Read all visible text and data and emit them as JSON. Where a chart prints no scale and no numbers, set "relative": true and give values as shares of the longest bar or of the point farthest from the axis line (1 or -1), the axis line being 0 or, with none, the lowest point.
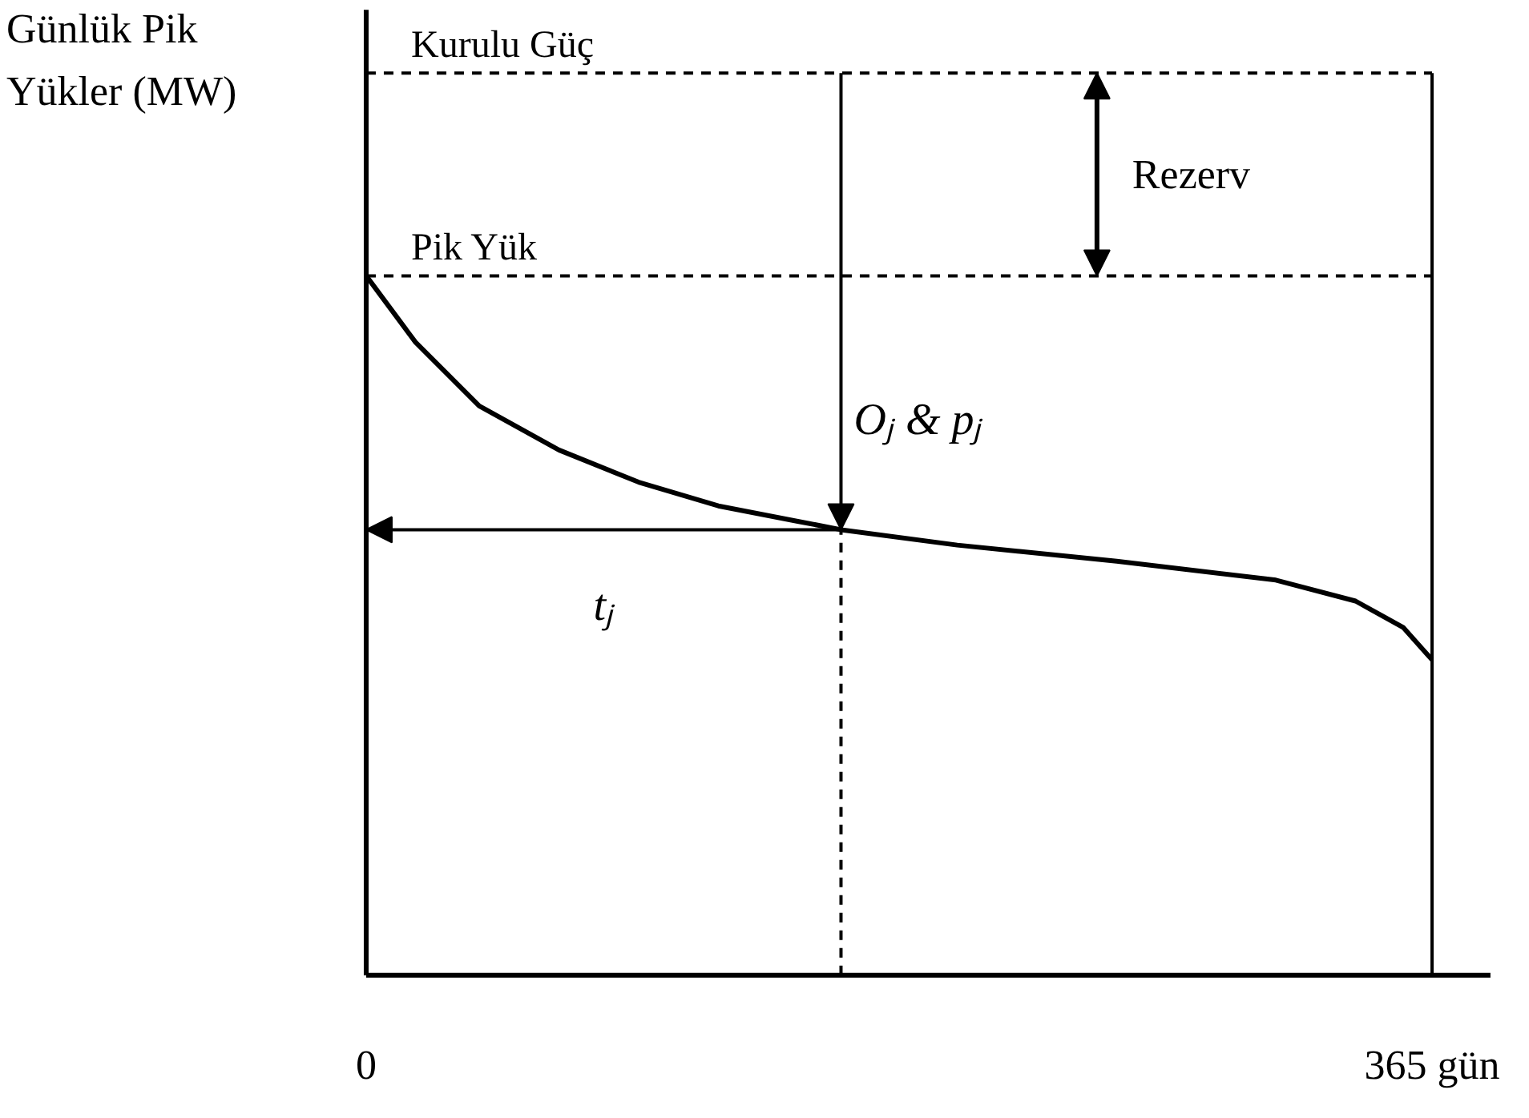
{
  "chart_data": {
    "type": "line",
    "relative": true,
    "ylabel": "Günlük Pik Yükler (MW)",
    "x": [
      0,
      16.9,
      38.7,
      66,
      93.3,
      120.6,
      147.8,
      162.6,
      202.4,
      257,
      311.5,
      338.8,
      355.2,
      365
    ],
    "series": [
      {
        "color": "#000000",
        "values": [
          1.0,
          0.905,
          0.814,
          0.751,
          0.705,
          0.671,
          0.649,
          0.637,
          0.615,
          0.592,
          0.565,
          0.535,
          0.497,
          0.451
        ]
      }
    ],
    "xlim": [
      0,
      385
    ],
    "xticks": [
      0,
      {
        "value": 365,
        "label": "365 gün"
      }
    ],
    "tick_labels": "x",
    "grid": false,
    "marker": "none",
    "line_style": "solid",
    "ref_lines": [
      {
        "axis": "y",
        "value": 1.29,
        "label": "Kurulu Güç",
        "line_style": "dashed",
        "color": "#000000"
      },
      {
        "axis": "y",
        "value": 1.0,
        "label": "Pik Yük",
        "line_style": "dashed",
        "color": "#000000"
      },
      {
        "axis": "x",
        "value": 365,
        "line_style": "solid",
        "color": "#000000"
      }
    ],
    "annotations": [
      "Rezerv",
      {
        "text": "Oⱼ & pⱼ",
        "x": 162.6,
        "y": 0.637
      },
      "tⱼ"
    ]
  }
}
